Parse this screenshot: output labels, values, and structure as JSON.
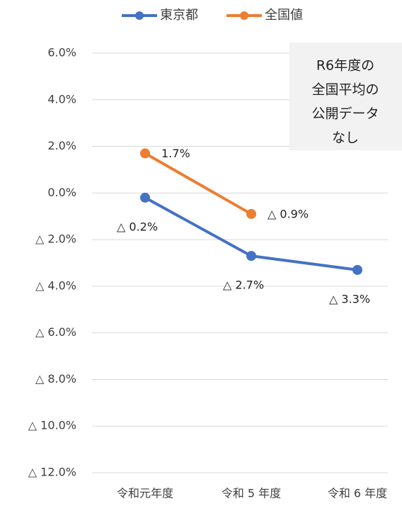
{
  "chart_data": {
    "type": "line",
    "categories": [
      "令和元年度",
      "令和 5 年度",
      "令和 6 年度"
    ],
    "series": [
      {
        "name": "東京都",
        "color": "#4472c4",
        "values": [
          -0.2,
          -2.7,
          -3.3
        ],
        "value_labels": [
          "△ 0.2%",
          "△ 2.7%",
          "△ 3.3%"
        ]
      },
      {
        "name": "全国値",
        "color": "#ed7d31",
        "values": [
          1.7,
          -0.9,
          null
        ],
        "value_labels": [
          "1.7%",
          "△ 0.9%",
          null
        ]
      }
    ],
    "ylim": [
      -12,
      6
    ],
    "yticks": [
      {
        "value": 6,
        "label": "6.0%"
      },
      {
        "value": 4,
        "label": "4.0%"
      },
      {
        "value": 2,
        "label": "2.0%"
      },
      {
        "value": 0,
        "label": "0.0%"
      },
      {
        "value": -2,
        "label": "△ 2.0%"
      },
      {
        "value": -4,
        "label": "△ 4.0%"
      },
      {
        "value": -6,
        "label": "△ 6.0%"
      },
      {
        "value": -8,
        "label": "△ 8.0%"
      },
      {
        "value": -10,
        "label": "△ 10.0%"
      },
      {
        "value": -12,
        "label": "△ 12.0%"
      }
    ],
    "grid": true,
    "legend": "top",
    "annotation": [
      "R6年度の",
      "全国平均の",
      "公開データ",
      "なし"
    ]
  }
}
